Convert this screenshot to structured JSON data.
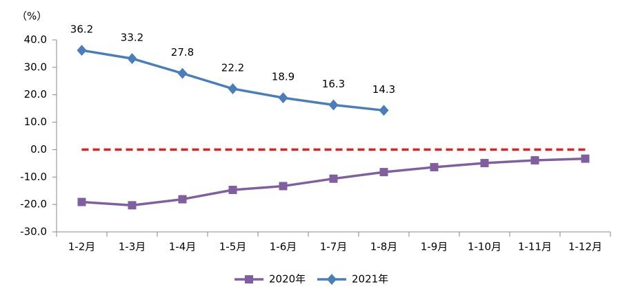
{
  "chart_data": {
    "type": "line",
    "unit_label": "（%）",
    "categories": [
      "1-2月",
      "1-3月",
      "1-4月",
      "1-5月",
      "1-6月",
      "1-7月",
      "1-8月",
      "1-9月",
      "1-10月",
      "1-11月",
      "1-12月"
    ],
    "series": [
      {
        "name": "2020年",
        "color": "#7f5fa0",
        "marker": "square",
        "values": [
          -19.1,
          -20.3,
          -18.1,
          -14.7,
          -13.3,
          -10.6,
          -8.2,
          -6.4,
          -4.9,
          -3.9,
          -3.3
        ]
      },
      {
        "name": "2021年",
        "color": "#4a7ebb",
        "marker": "diamond",
        "show_labels": true,
        "values": [
          36.2,
          33.2,
          27.8,
          22.2,
          18.9,
          16.3,
          14.3,
          null,
          null,
          null,
          null
        ]
      }
    ],
    "ylim": [
      -30,
      40
    ],
    "yticks": [
      {
        "value": -30,
        "label": "-30.0"
      },
      {
        "value": -20,
        "label": "-20.0"
      },
      {
        "value": -10,
        "label": "-10.0"
      },
      {
        "value": 0,
        "label": "0.0"
      },
      {
        "value": 10,
        "label": "10.0"
      },
      {
        "value": 20,
        "label": "20.0"
      },
      {
        "value": 30,
        "label": "30.0"
      },
      {
        "value": 40,
        "label": "40.0"
      }
    ],
    "reference_line": {
      "value": 0,
      "color": "#e02020"
    },
    "legend": "bottom"
  }
}
